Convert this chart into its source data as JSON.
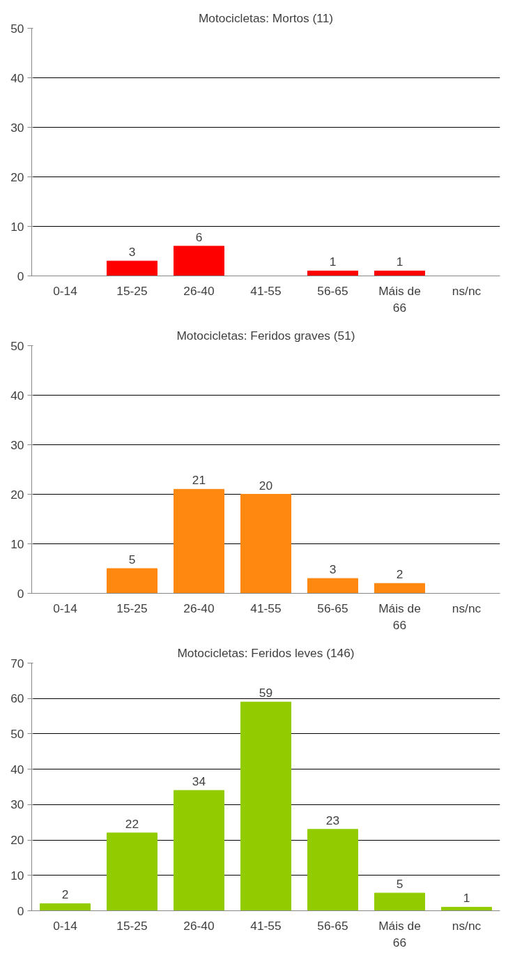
{
  "chart_data": [
    {
      "type": "bar",
      "title": "Motocicletas: Mortos (11)",
      "categories": [
        "0-14",
        "15-25",
        "26-40",
        "41-55",
        "56-65",
        "Máis de\n66",
        "ns/nc"
      ],
      "values": [
        0,
        3,
        6,
        0,
        1,
        1,
        0
      ],
      "value_labels": [
        null,
        "3",
        "6",
        null,
        "1",
        "1",
        null
      ],
      "color": "#ff0000",
      "ylim": [
        0,
        50
      ],
      "yticks": [
        0,
        10,
        20,
        30,
        40,
        50
      ],
      "grid": "y"
    },
    {
      "type": "bar",
      "title": "Motocicletas: Feridos graves (51)",
      "categories": [
        "0-14",
        "15-25",
        "26-40",
        "41-55",
        "56-65",
        "Máis de\n66",
        "ns/nc"
      ],
      "values": [
        0,
        5,
        21,
        20,
        3,
        2,
        0
      ],
      "value_labels": [
        null,
        "5",
        "21",
        "20",
        "3",
        "2",
        null
      ],
      "color": "#ff8811",
      "ylim": [
        0,
        50
      ],
      "yticks": [
        0,
        10,
        20,
        30,
        40,
        50
      ],
      "grid": "y"
    },
    {
      "type": "bar",
      "title": "Motocicletas: Feridos leves (146)",
      "categories": [
        "0-14",
        "15-25",
        "26-40",
        "41-55",
        "56-65",
        "Máis de\n66",
        "ns/nc"
      ],
      "values": [
        2,
        22,
        34,
        59,
        23,
        5,
        1
      ],
      "value_labels": [
        "2",
        "22",
        "34",
        "59",
        "23",
        "5",
        "1"
      ],
      "color": "#92cc00",
      "ylim": [
        0,
        70
      ],
      "yticks": [
        0,
        10,
        20,
        30,
        40,
        50,
        60,
        70
      ],
      "grid": "y"
    }
  ]
}
